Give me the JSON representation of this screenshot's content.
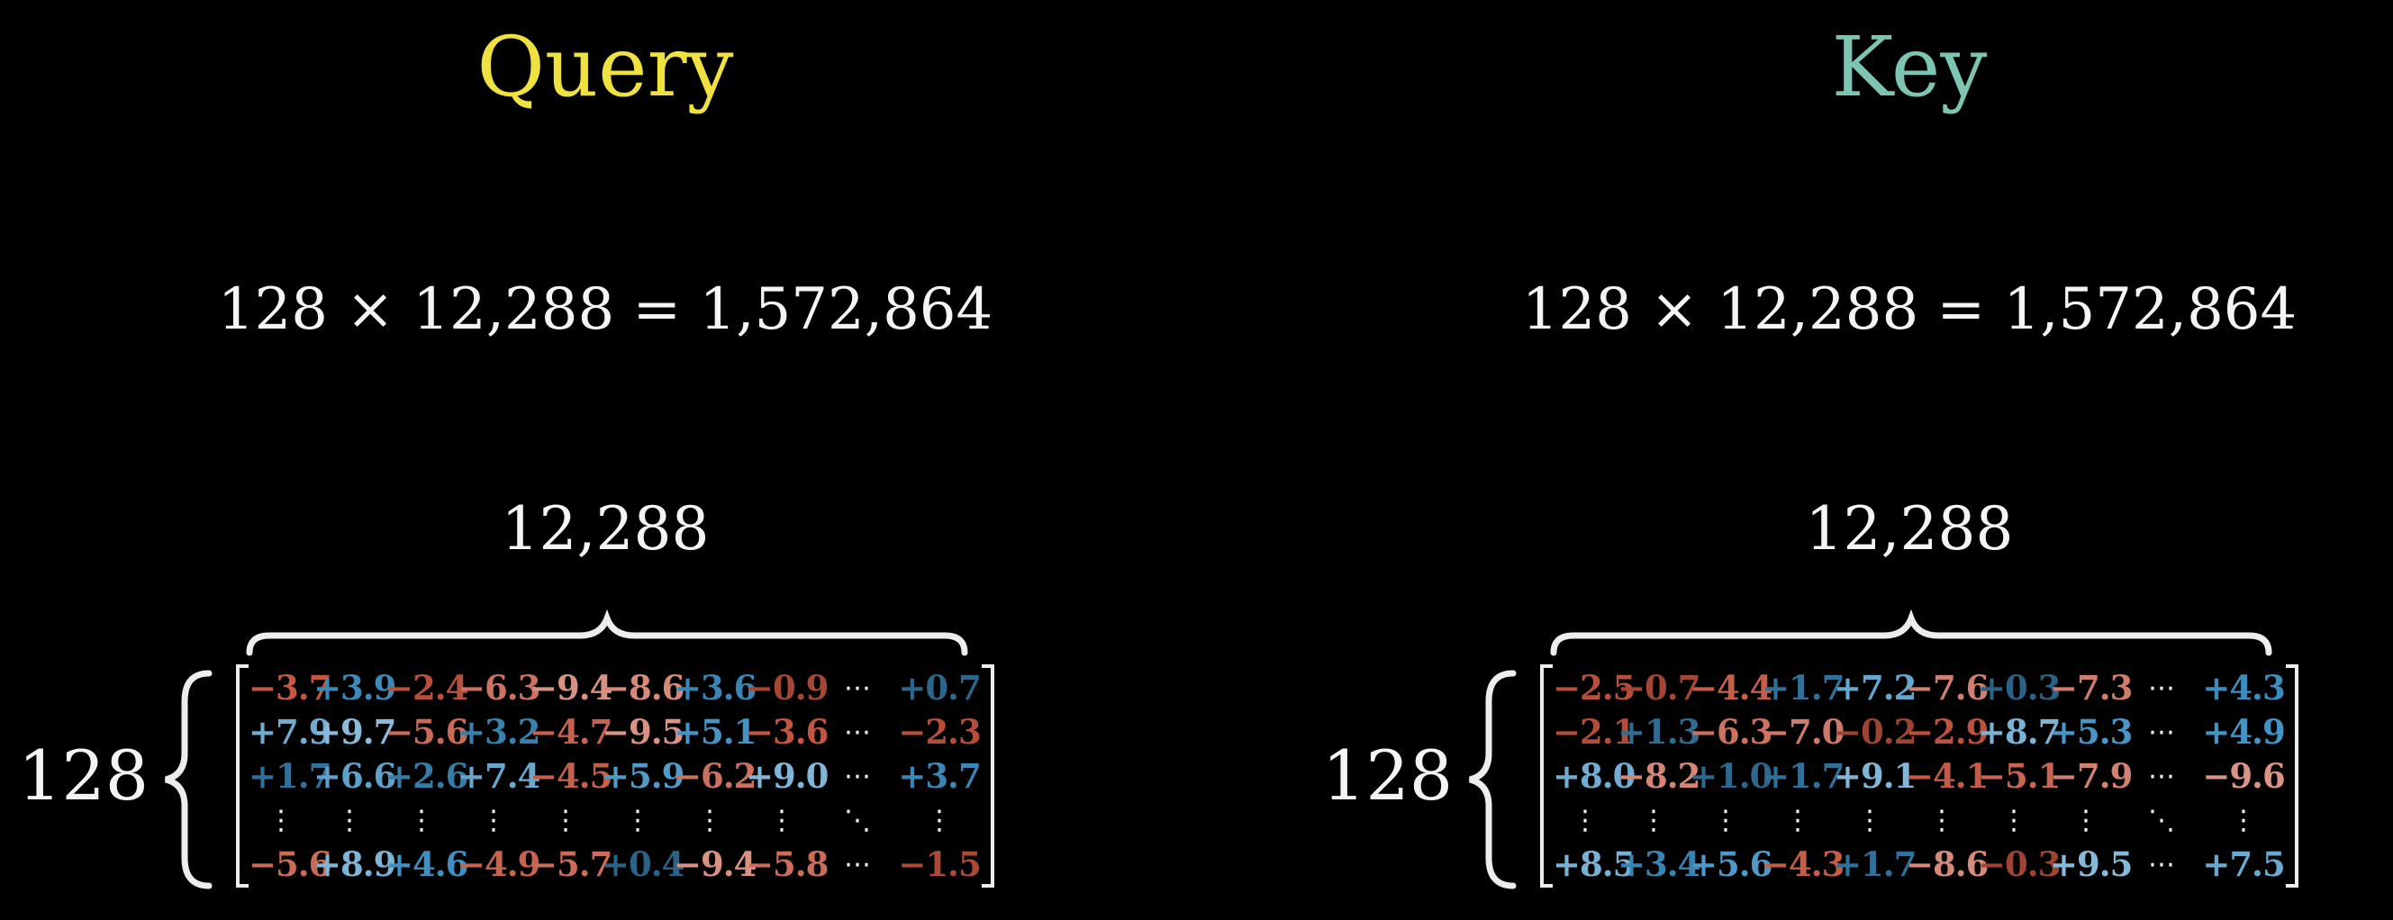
{
  "background": "#000000",
  "text_color": "#f4f4f2",
  "value_colors": {
    "positive_base": "#6fa9cd",
    "negative_base": "#d9897a",
    "dots": "#f5f5f5"
  },
  "panels": [
    {
      "title": "Query",
      "title_color": "#efe13f",
      "equation": "128 × 12,288 = 1,572,864",
      "col_count_label": "12,288",
      "row_count_label": "128",
      "matrix_rows": [
        [
          "−3.7",
          "+3.9",
          "−2.4",
          "−6.3",
          "−9.4",
          "−8.6",
          "+3.6",
          "−0.9",
          "⋯",
          "+0.7"
        ],
        [
          "+7.9",
          "+9.7",
          "−5.6",
          "+3.2",
          "−4.7",
          "−9.5",
          "+5.1",
          "−3.6",
          "⋯",
          "−2.3"
        ],
        [
          "+1.7",
          "+6.6",
          "+2.6",
          "+7.4",
          "−4.5",
          "+5.9",
          "−6.2",
          "+9.0",
          "⋯",
          "+3.7"
        ],
        [
          "⋮",
          "⋮",
          "⋮",
          "⋮",
          "⋮",
          "⋮",
          "⋮",
          "⋮",
          "⋱",
          "⋮"
        ],
        [
          "−5.6",
          "+8.9",
          "+4.6",
          "−4.9",
          "−5.7",
          "+0.4",
          "−9.4",
          "−5.8",
          "⋯",
          "−1.5"
        ]
      ]
    },
    {
      "title": "Key",
      "title_color": "#7cc5b2",
      "equation": "128 × 12,288 = 1,572,864",
      "col_count_label": "12,288",
      "row_count_label": "128",
      "matrix_rows": [
        [
          "−2.5",
          "−0.7",
          "−4.4",
          "+1.7",
          "+7.2",
          "−7.6",
          "+0.3",
          "−7.3",
          "⋯",
          "+4.3"
        ],
        [
          "−2.1",
          "+1.3",
          "−6.3",
          "−7.0",
          "−0.2",
          "−2.9",
          "+8.7",
          "+5.3",
          "⋯",
          "+4.9"
        ],
        [
          "+8.0",
          "−8.2",
          "+1.0",
          "+1.7",
          "+9.1",
          "−4.1",
          "−5.1",
          "−7.9",
          "⋯",
          "−9.6"
        ],
        [
          "⋮",
          "⋮",
          "⋮",
          "⋮",
          "⋮",
          "⋮",
          "⋮",
          "⋮",
          "⋱",
          "⋮"
        ],
        [
          "+8.5",
          "+3.4",
          "+5.6",
          "−4.3",
          "+1.7",
          "−8.6",
          "−0.3",
          "+9.5",
          "⋯",
          "+7.5"
        ]
      ]
    }
  ]
}
